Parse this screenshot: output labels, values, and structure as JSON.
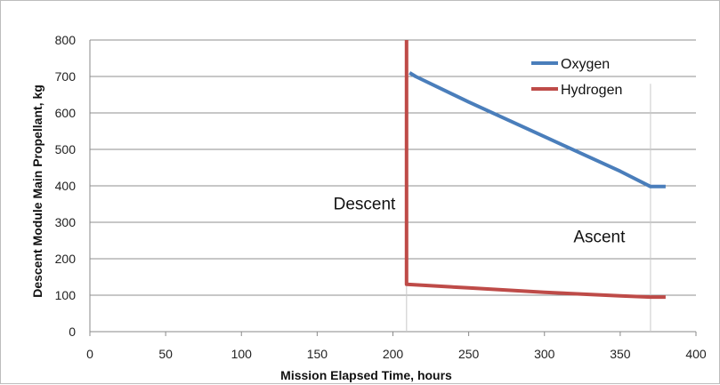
{
  "chart_data": {
    "type": "line",
    "title": "",
    "xlabel": "Mission Elapsed Time, hours",
    "ylabel": "Descent Module Main Propellant, kg",
    "xlim": [
      0,
      400
    ],
    "ylim": [
      0,
      800
    ],
    "xticks": [
      0,
      50,
      100,
      150,
      200,
      250,
      300,
      350,
      400
    ],
    "yticks": [
      0,
      100,
      200,
      300,
      400,
      500,
      600,
      700,
      800
    ],
    "grid": "horizontal",
    "legend_position": "top-right",
    "series": [
      {
        "name": "Oxygen",
        "color": "#4a7ebb",
        "points": [
          [
            211,
            710
          ],
          [
            215,
            700
          ],
          [
            250,
            630
          ],
          [
            300,
            535
          ],
          [
            350,
            440
          ],
          [
            370,
            398
          ],
          [
            380,
            398
          ]
        ]
      },
      {
        "name": "Hydrogen",
        "color": "#be4b48",
        "points": [
          [
            209,
            800
          ],
          [
            209,
            130
          ],
          [
            250,
            120
          ],
          [
            300,
            108
          ],
          [
            350,
            98
          ],
          [
            370,
            95
          ],
          [
            380,
            95
          ]
        ]
      }
    ],
    "vertical_markers": [
      {
        "x": 209,
        "y_top": 800,
        "color": "#c8c8c8"
      },
      {
        "x": 370,
        "y_top": 680,
        "color": "#c8c8c8"
      }
    ],
    "annotations": [
      {
        "text": "Descent",
        "x": 190,
        "y": 335
      },
      {
        "text": "Ascent",
        "x": 345,
        "y": 245
      }
    ]
  }
}
